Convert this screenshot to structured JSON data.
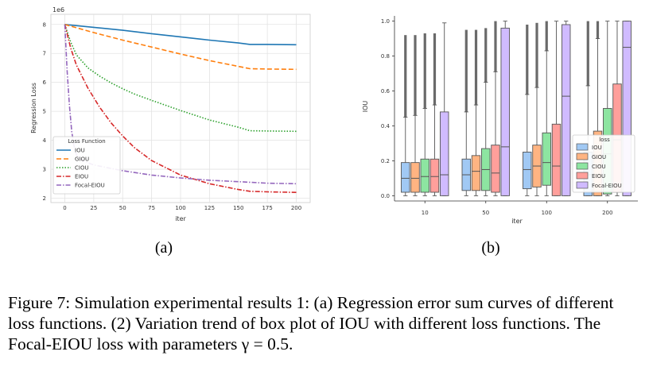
{
  "figure": {
    "panel_a_label": "(a)",
    "panel_b_label": "(b)",
    "caption": "Figure 7: Simulation experimental results 1: (a) Regression error sum curves of different loss functions. (2) Variation trend of box plot of IOU with different loss functions. The Focal-EIOU loss with parameters γ = 0.5."
  },
  "chart_data": [
    {
      "type": "line",
      "xlabel": "iter",
      "ylabel": "Regression Loss",
      "y_scale_label": "1e6",
      "xlim": [
        -12,
        212
      ],
      "ylim": [
        1.85,
        8.35
      ],
      "xticks": [
        0,
        25,
        50,
        75,
        100,
        125,
        150,
        175,
        200
      ],
      "yticks": [
        2,
        3,
        4,
        5,
        6,
        7,
        8
      ],
      "grid": true,
      "legend": {
        "title": "Loss Function",
        "position": "lower-left"
      },
      "series": [
        {
          "name": "IOU",
          "color": "#1f77b4",
          "dash": "solid",
          "x": [
            0,
            25,
            50,
            75,
            100,
            125,
            150,
            160,
            175,
            200
          ],
          "y": [
            8.0,
            7.9,
            7.8,
            7.68,
            7.57,
            7.46,
            7.36,
            7.31,
            7.31,
            7.3
          ]
        },
        {
          "name": "GIOU",
          "color": "#ff7f0e",
          "dash": "dashed",
          "x": [
            0,
            25,
            50,
            75,
            100,
            125,
            150,
            160,
            175,
            200
          ],
          "y": [
            8.0,
            7.72,
            7.46,
            7.22,
            6.98,
            6.75,
            6.55,
            6.47,
            6.46,
            6.45
          ]
        },
        {
          "name": "CIOU",
          "color": "#2ca02c",
          "dash": "dotted",
          "x": [
            0,
            5,
            10,
            20,
            30,
            40,
            50,
            60,
            75,
            100,
            125,
            150,
            160,
            175,
            200
          ],
          "y": [
            8.0,
            7.4,
            6.95,
            6.5,
            6.22,
            5.98,
            5.78,
            5.6,
            5.38,
            5.03,
            4.7,
            4.45,
            4.33,
            4.32,
            4.31
          ]
        },
        {
          "name": "EIOU",
          "color": "#d62728",
          "dash": "dashdot",
          "x": [
            0,
            5,
            10,
            20,
            30,
            40,
            50,
            60,
            75,
            100,
            125,
            150,
            160,
            175,
            200
          ],
          "y": [
            8.0,
            7.2,
            6.6,
            5.8,
            5.15,
            4.6,
            4.15,
            3.75,
            3.3,
            2.8,
            2.5,
            2.3,
            2.24,
            2.22,
            2.2
          ]
        },
        {
          "name": "Focal-EIOU",
          "color": "#9467bd",
          "dash": "dashdot",
          "x": [
            0,
            2,
            4,
            6,
            8,
            10,
            15,
            25,
            50,
            75,
            100,
            125,
            150,
            175,
            200
          ],
          "y": [
            8.0,
            6.4,
            5.2,
            4.3,
            3.8,
            3.5,
            3.3,
            3.15,
            2.95,
            2.8,
            2.7,
            2.62,
            2.57,
            2.52,
            2.5
          ]
        }
      ]
    },
    {
      "type": "box",
      "xlabel": "iter",
      "ylabel": "IOU",
      "categories": [
        "10",
        "50",
        "100",
        "200"
      ],
      "ylim": [
        -0.03,
        1.03
      ],
      "yticks": [
        0.0,
        0.2,
        0.4,
        0.6,
        0.8,
        1.0
      ],
      "grid": false,
      "legend": {
        "title": "loss",
        "position": "right"
      },
      "series": [
        {
          "name": "IOU",
          "fill": "#a1c9f4",
          "edge": "#4a6fa5",
          "boxes": [
            {
              "q1": 0.02,
              "median": 0.1,
              "q3": 0.19,
              "wlo": 0.0,
              "whi": 0.45,
              "flo": 0.45,
              "fhi": 0.92
            },
            {
              "q1": 0.03,
              "median": 0.12,
              "q3": 0.21,
              "wlo": 0.0,
              "whi": 0.48,
              "flo": 0.48,
              "fhi": 0.95
            },
            {
              "q1": 0.04,
              "median": 0.15,
              "q3": 0.25,
              "wlo": 0.0,
              "whi": 0.58,
              "flo": 0.58,
              "fhi": 0.98
            },
            {
              "q1": 0.0,
              "median": 0.12,
              "q3": 0.25,
              "wlo": 0.0,
              "whi": 0.63,
              "flo": 0.63,
              "fhi": 1.0
            }
          ]
        },
        {
          "name": "GIOU",
          "fill": "#ffb482",
          "edge": "#b06a3b",
          "boxes": [
            {
              "q1": 0.02,
              "median": 0.1,
              "q3": 0.19,
              "wlo": 0.0,
              "whi": 0.46,
              "flo": 0.46,
              "fhi": 0.92
            },
            {
              "q1": 0.03,
              "median": 0.14,
              "q3": 0.23,
              "wlo": 0.0,
              "whi": 0.52,
              "flo": 0.52,
              "fhi": 0.95
            },
            {
              "q1": 0.05,
              "median": 0.17,
              "q3": 0.29,
              "wlo": 0.0,
              "whi": 0.62,
              "flo": 0.62,
              "fhi": 0.99
            },
            {
              "q1": 0.0,
              "median": 0.17,
              "q3": 0.37,
              "wlo": 0.0,
              "whi": 0.9,
              "flo": 0.9,
              "fhi": 1.0
            }
          ]
        },
        {
          "name": "CIOU",
          "fill": "#8de5a1",
          "edge": "#3f8a52",
          "boxes": [
            {
              "q1": 0.02,
              "median": 0.11,
              "q3": 0.21,
              "wlo": 0.0,
              "whi": 0.5,
              "flo": 0.5,
              "fhi": 0.93
            },
            {
              "q1": 0.03,
              "median": 0.15,
              "q3": 0.27,
              "wlo": 0.0,
              "whi": 0.65,
              "flo": 0.65,
              "fhi": 0.96
            },
            {
              "q1": 0.06,
              "median": 0.19,
              "q3": 0.36,
              "wlo": 0.0,
              "whi": 0.83,
              "flo": 0.83,
              "fhi": 1.0
            },
            {
              "q1": 0.01,
              "median": 0.24,
              "q3": 0.5,
              "wlo": 0.0,
              "whi": 1.0,
              "flo": null,
              "fhi": null
            }
          ]
        },
        {
          "name": "EIOU",
          "fill": "#ff9f9b",
          "edge": "#b05a57",
          "boxes": [
            {
              "q1": 0.02,
              "median": 0.11,
              "q3": 0.21,
              "wlo": 0.0,
              "whi": 0.52,
              "flo": 0.52,
              "fhi": 0.93
            },
            {
              "q1": 0.02,
              "median": 0.13,
              "q3": 0.29,
              "wlo": 0.0,
              "whi": 0.71,
              "flo": 0.71,
              "fhi": 1.0
            },
            {
              "q1": 0.0,
              "median": 0.17,
              "q3": 0.41,
              "wlo": 0.0,
              "whi": 1.0,
              "flo": null,
              "fhi": null
            },
            {
              "q1": 0.02,
              "median": 0.32,
              "q3": 0.64,
              "wlo": 0.0,
              "whi": 1.0,
              "flo": null,
              "fhi": null
            }
          ]
        },
        {
          "name": "Focal-EIOU",
          "fill": "#d0bbff",
          "edge": "#7a65a8",
          "boxes": [
            {
              "q1": 0.0,
              "median": 0.12,
              "q3": 0.48,
              "wlo": 0.0,
              "whi": 0.99,
              "flo": null,
              "fhi": null
            },
            {
              "q1": 0.0,
              "median": 0.28,
              "q3": 0.96,
              "wlo": 0.0,
              "whi": 1.0,
              "flo": null,
              "fhi": null
            },
            {
              "q1": 0.0,
              "median": 0.57,
              "q3": 0.98,
              "wlo": 0.0,
              "whi": 1.0,
              "flo": null,
              "fhi": null
            },
            {
              "q1": 0.0,
              "median": 0.85,
              "q3": 1.0,
              "wlo": 0.0,
              "whi": 1.0,
              "flo": null,
              "fhi": null
            }
          ]
        }
      ]
    }
  ]
}
